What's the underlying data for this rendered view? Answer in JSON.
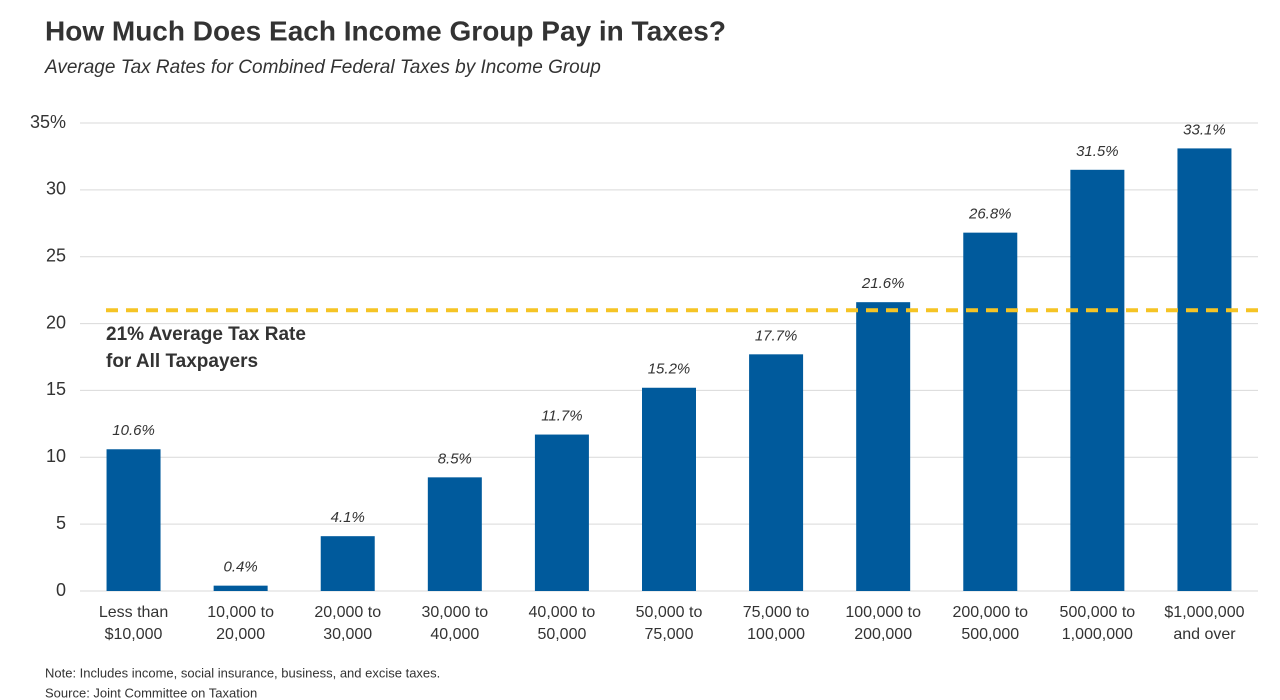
{
  "chart_data": {
    "type": "bar",
    "title": "How Much Does Each Income Group Pay in Taxes?",
    "subtitle": "Average Tax Rates for Combined Federal Taxes by Income Group",
    "categories": [
      [
        "Less than",
        "$10,000"
      ],
      [
        "10,000 to",
        "20,000"
      ],
      [
        "20,000 to",
        "30,000"
      ],
      [
        "30,000 to",
        "40,000"
      ],
      [
        "40,000 to",
        "50,000"
      ],
      [
        "50,000 to",
        "75,000"
      ],
      [
        "75,000 to",
        "100,000"
      ],
      [
        "100,000 to",
        "200,000"
      ],
      [
        "200,000 to",
        "500,000"
      ],
      [
        "500,000 to",
        "1,000,000"
      ],
      [
        "$1,000,000",
        "and over"
      ]
    ],
    "values": [
      10.6,
      0.4,
      4.1,
      8.5,
      11.7,
      15.2,
      17.7,
      21.6,
      26.8,
      31.5,
      33.1
    ],
    "value_labels": [
      "10.6%",
      "0.4%",
      "4.1%",
      "8.5%",
      "11.7%",
      "15.2%",
      "17.7%",
      "21.6%",
      "26.8%",
      "31.5%",
      "33.1%"
    ],
    "color": "#005a9c",
    "ylim": [
      0,
      35
    ],
    "yticks": [
      0,
      5,
      10,
      15,
      20,
      25,
      30,
      {
        "value": 35,
        "label": "35%"
      }
    ],
    "grid": true,
    "reference_line": {
      "value": 21,
      "label": [
        "21% Average Tax Rate",
        "for All Taxpayers"
      ],
      "color": "#f5c425"
    },
    "note": "Note: Includes income, social insurance, business, and excise taxes.",
    "source": "Source: Joint Committee on Taxation"
  }
}
